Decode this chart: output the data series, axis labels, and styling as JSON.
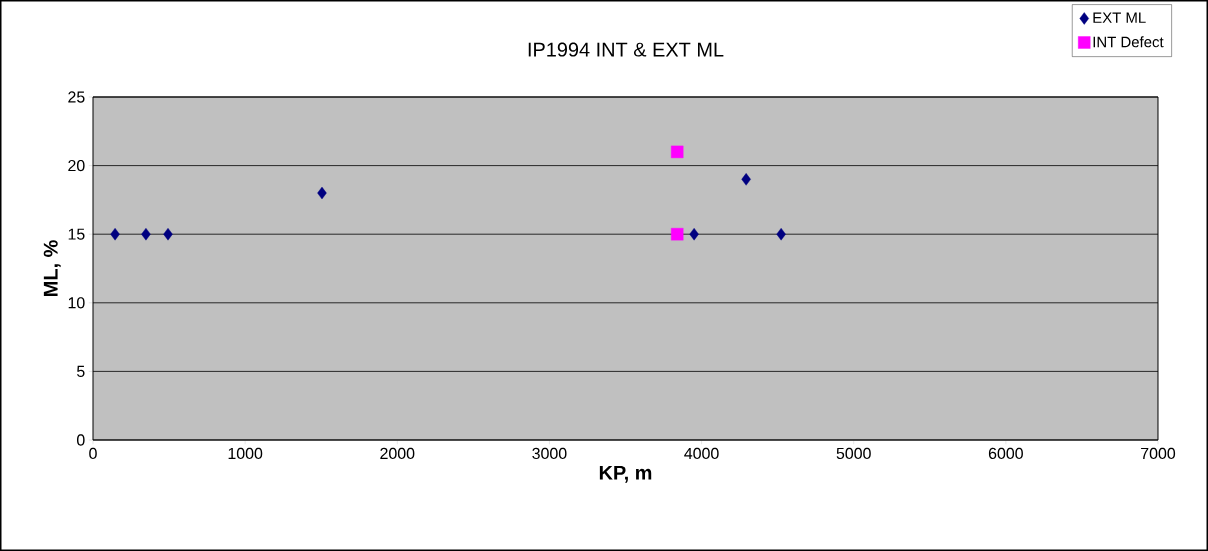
{
  "chart_data": {
    "type": "scatter",
    "title": "IP1994 INT & EXT ML",
    "xlabel": "KP, m",
    "ylabel": "ML, %",
    "xlim": [
      0,
      7000
    ],
    "xticks": [
      0,
      1000,
      2000,
      3000,
      4000,
      5000,
      6000,
      7000
    ],
    "ylim": [
      0,
      25
    ],
    "yticks": [
      0,
      5,
      10,
      15,
      20,
      25
    ],
    "grid": "y",
    "legend": "top right",
    "series": [
      {
        "name": "EXT ML",
        "color": "#000080",
        "marker": "diamond",
        "x": [
          145,
          348,
          493,
          1505,
          3951,
          4293,
          4523
        ],
        "values": [
          15,
          15,
          15,
          18,
          15,
          19,
          15
        ]
      },
      {
        "name": "INT Defect",
        "color": "#ff00ff",
        "marker": "square",
        "x": [
          3840,
          3840
        ],
        "values": [
          21,
          15
        ]
      }
    ]
  }
}
